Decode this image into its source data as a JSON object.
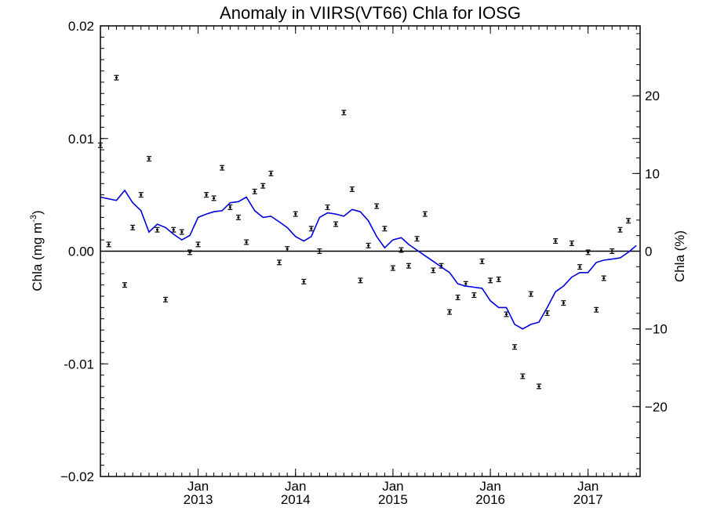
{
  "chart_data": {
    "type": "scatter",
    "title": "Anomaly in VIIRS(VT66) Chla for IOSG",
    "ylabel": "Chla (mg m",
    "ylabel_sup": "-3",
    "ylabel_close": ")",
    "y2label": "Chla (%)",
    "xlim": [
      "2012-01-01",
      "2017-07-15"
    ],
    "ylim": [
      -0.02,
      0.02
    ],
    "y2lim": [
      -29,
      29
    ],
    "y_ticks": [
      -0.02,
      -0.01,
      0.0,
      0.01,
      0.02
    ],
    "y_tick_labels": [
      "−0.02",
      "-0.01",
      "0.00",
      "0.01",
      "0.02"
    ],
    "y2_ticks": [
      -20,
      -10,
      0,
      10,
      20
    ],
    "y2_tick_labels": [
      "−20",
      "−10",
      "0",
      "10",
      "20"
    ],
    "x_ticks": [
      "2013-01-01",
      "2014-01-01",
      "2015-01-01",
      "2016-01-01",
      "2017-01-01"
    ],
    "x_tick_labels": [
      {
        "month": "Jan",
        "year": "2013"
      },
      {
        "month": "Jan",
        "year": "2014"
      },
      {
        "month": "Jan",
        "year": "2015"
      },
      {
        "month": "Jan",
        "year": "2016"
      },
      {
        "month": "Jan",
        "year": "2017"
      }
    ],
    "zero_line": 0,
    "colors": {
      "trend": "#0000dd",
      "points": "#000000",
      "axis": "#000000"
    },
    "series": [
      {
        "type": "scatter_errorbar",
        "x": [
          "2012-01-01",
          "2012-02-01",
          "2012-03-01",
          "2012-04-01",
          "2012-05-01",
          "2012-06-01",
          "2012-07-01",
          "2012-08-01",
          "2012-09-01",
          "2012-10-01",
          "2012-11-01",
          "2012-12-01",
          "2013-01-01",
          "2013-02-01",
          "2013-03-01",
          "2013-04-01",
          "2013-05-01",
          "2013-06-01",
          "2013-07-01",
          "2013-08-01",
          "2013-09-01",
          "2013-10-01",
          "2013-11-01",
          "2013-12-01",
          "2014-01-01",
          "2014-02-01",
          "2014-03-01",
          "2014-04-01",
          "2014-05-01",
          "2014-06-01",
          "2014-07-01",
          "2014-08-01",
          "2014-09-01",
          "2014-10-01",
          "2014-11-01",
          "2014-12-01",
          "2015-01-01",
          "2015-02-01",
          "2015-03-01",
          "2015-04-01",
          "2015-05-01",
          "2015-06-01",
          "2015-07-01",
          "2015-08-01",
          "2015-09-01",
          "2015-10-01",
          "2015-11-01",
          "2015-12-01",
          "2016-01-01",
          "2016-02-01",
          "2016-03-01",
          "2016-04-01",
          "2016-05-01",
          "2016-06-01",
          "2016-07-01",
          "2016-08-01",
          "2016-09-01",
          "2016-10-01",
          "2016-11-01",
          "2016-12-01",
          "2017-01-01",
          "2017-02-01",
          "2017-03-01",
          "2017-04-01",
          "2017-05-01",
          "2017-06-01"
        ],
        "y": [
          0.0094,
          0.0006,
          0.0154,
          -0.003,
          0.0021,
          0.005,
          0.0082,
          0.0019,
          -0.0043,
          0.0019,
          0.0017,
          -0.0001,
          0.0006,
          0.005,
          0.0047,
          0.0074,
          0.0039,
          0.003,
          0.0008,
          0.0053,
          0.0058,
          0.0069,
          -0.001,
          0.0002,
          0.0033,
          -0.0027,
          0.002,
          0.0,
          0.0039,
          0.0024,
          0.0123,
          0.0055,
          -0.0026,
          0.0005,
          0.004,
          0.002,
          -0.0015,
          0.0001,
          -0.0013,
          0.0011,
          0.0033,
          -0.0017,
          -0.0013,
          -0.0054,
          -0.0041,
          -0.0029,
          -0.0039,
          -0.0009,
          -0.0026,
          -0.0025,
          -0.0056,
          -0.0085,
          -0.0111,
          -0.0038,
          -0.012,
          -0.0055,
          0.0009,
          -0.0046,
          0.0007,
          -0.0014,
          -0.0001,
          -0.0052,
          -0.0024,
          0.0,
          0.0019,
          0.0027
        ],
        "err": 0.0002
      },
      {
        "type": "line",
        "x": [
          "2012-01-01",
          "2012-03-01",
          "2012-04-01",
          "2012-05-01",
          "2012-06-01",
          "2012-07-01",
          "2012-08-01",
          "2012-09-01",
          "2012-10-01",
          "2012-11-01",
          "2012-12-01",
          "2013-01-01",
          "2013-02-01",
          "2013-03-01",
          "2013-04-01",
          "2013-05-01",
          "2013-06-01",
          "2013-07-01",
          "2013-08-01",
          "2013-09-01",
          "2013-10-01",
          "2013-11-01",
          "2013-12-01",
          "2014-01-01",
          "2014-02-01",
          "2014-03-01",
          "2014-04-01",
          "2014-05-01",
          "2014-06-01",
          "2014-07-01",
          "2014-08-01",
          "2014-09-01",
          "2014-10-01",
          "2014-11-01",
          "2014-12-01",
          "2015-01-01",
          "2015-02-01",
          "2015-03-01",
          "2015-04-01",
          "2015-05-01",
          "2015-06-01",
          "2015-07-01",
          "2015-08-01",
          "2015-09-01",
          "2015-10-01",
          "2015-11-01",
          "2015-12-01",
          "2016-01-01",
          "2016-02-01",
          "2016-03-01",
          "2016-04-01",
          "2016-05-01",
          "2016-06-01",
          "2016-07-01",
          "2016-08-01",
          "2016-09-01",
          "2016-10-01",
          "2016-11-01",
          "2016-12-01",
          "2017-01-01",
          "2017-02-01",
          "2017-03-01",
          "2017-04-01",
          "2017-05-01",
          "2017-06-01",
          "2017-07-01"
        ],
        "y": [
          0.0048,
          0.0045,
          0.0054,
          0.0043,
          0.0036,
          0.0017,
          0.0024,
          0.0021,
          0.0015,
          0.001,
          0.0014,
          0.003,
          0.0033,
          0.0035,
          0.0036,
          0.0043,
          0.0044,
          0.0048,
          0.0036,
          0.003,
          0.0031,
          0.0026,
          0.0021,
          0.0013,
          0.0009,
          0.0013,
          0.003,
          0.0034,
          0.0033,
          0.0031,
          0.0037,
          0.0035,
          0.0027,
          0.0013,
          0.0003,
          0.001,
          0.0012,
          0.0006,
          0.0001,
          -0.0004,
          -0.0009,
          -0.0014,
          -0.0019,
          -0.0029,
          -0.0031,
          -0.0032,
          -0.0033,
          -0.0044,
          -0.005,
          -0.005,
          -0.0065,
          -0.0069,
          -0.0065,
          -0.0063,
          -0.005,
          -0.0036,
          -0.0031,
          -0.0023,
          -0.0019,
          -0.0019,
          -0.001,
          -0.0008,
          -0.0007,
          -0.0006,
          -0.0001,
          0.0005
        ]
      }
    ]
  }
}
